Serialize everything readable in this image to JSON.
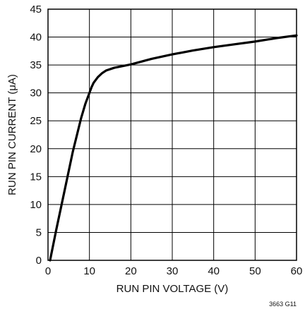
{
  "chart_data": {
    "type": "line",
    "title": "",
    "xlabel": "RUN PIN VOLTAGE (V)",
    "ylabel": "RUN PIN CURRENT (μA)",
    "xlim": [
      0,
      60
    ],
    "ylim": [
      0,
      45
    ],
    "x_ticks": [
      0,
      10,
      20,
      30,
      40,
      50,
      60
    ],
    "y_ticks": [
      0,
      5,
      10,
      15,
      20,
      25,
      30,
      35,
      40,
      45
    ],
    "grid": true,
    "series": [
      {
        "x": [
          0.5,
          2,
          4,
          6,
          8,
          9,
          10,
          10.5,
          11,
          12,
          13,
          14,
          16,
          18,
          20,
          25,
          30,
          35,
          40,
          45,
          50,
          55,
          60
        ],
        "y": [
          0,
          5.5,
          12.5,
          19.5,
          25.5,
          28,
          30,
          31,
          31.8,
          32.8,
          33.5,
          34,
          34.5,
          34.8,
          35.1,
          36.1,
          36.9,
          37.6,
          38.2,
          38.7,
          39.2,
          39.8,
          40.3
        ]
      }
    ],
    "figure_code": "3663 G11"
  }
}
